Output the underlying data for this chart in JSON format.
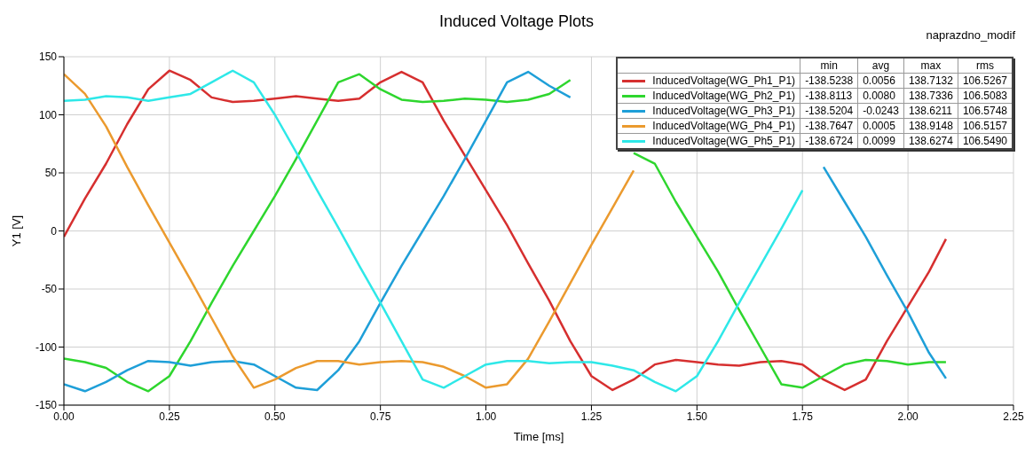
{
  "chart_data": {
    "type": "line",
    "title": "Induced Voltage Plots",
    "subtitle": "naprazdno_modif",
    "xlabel": "Time [ms]",
    "ylabel": "Y1 [V]",
    "x": [
      0,
      0.05,
      0.1,
      0.15,
      0.2,
      0.25,
      0.3,
      0.35,
      0.4,
      0.45,
      0.5,
      0.55,
      0.6,
      0.65,
      0.7,
      0.75,
      0.8,
      0.85,
      0.9,
      0.95,
      1.0,
      1.05,
      1.1,
      1.15,
      1.2,
      1.25,
      1.3,
      1.35,
      1.4,
      1.45,
      1.5,
      1.55,
      1.6,
      1.65,
      1.7,
      1.75,
      1.8,
      1.85,
      1.9,
      1.95,
      2.0,
      2.05,
      2.09
    ],
    "series": [
      {
        "name": "InducedVoltage(WG_Ph1_P1)",
        "color": "#d62f2f",
        "values": [
          -5,
          28,
          58,
          92,
          122,
          138,
          130,
          115,
          111,
          112,
          114,
          116,
          114,
          112,
          114,
          128,
          137,
          128,
          95,
          65,
          35,
          5,
          -28,
          -60,
          -95,
          -125,
          -137,
          -128,
          -115,
          -111,
          -113,
          -115,
          -116,
          -113,
          -112,
          -115,
          -128,
          -137,
          -128,
          -95,
          -65,
          -35,
          -7
        ]
      },
      {
        "name": "InducedVoltage(WG_Ph2_P1)",
        "color": "#2ed62e",
        "values": [
          -110,
          -113,
          -118,
          -130,
          -138,
          -125,
          -95,
          -62,
          -30,
          0,
          30,
          62,
          95,
          128,
          135,
          122,
          113,
          111,
          112,
          114,
          113,
          111,
          113,
          118,
          130,
          null,
          null,
          67,
          58,
          25,
          -5,
          -35,
          -68,
          -100,
          -132,
          -135,
          -125,
          -115,
          -111,
          -112,
          -115,
          -113,
          -113
        ]
      },
      {
        "name": "InducedVoltage(WG_Ph3_P1)",
        "color": "#1e9fd8",
        "values": [
          -132,
          -138,
          -130,
          -120,
          -112,
          -113,
          -116,
          -113,
          -112,
          -115,
          -125,
          -135,
          -137,
          -120,
          -95,
          -62,
          -30,
          0,
          30,
          62,
          95,
          128,
          137,
          125,
          115,
          null,
          null,
          null,
          null,
          null,
          null,
          null,
          null,
          null,
          null,
          null,
          55,
          25,
          -5,
          -38,
          -70,
          -105,
          -127
        ]
      },
      {
        "name": "InducedVoltage(WG_Ph4_P1)",
        "color": "#eb9a2e",
        "values": [
          135,
          118,
          90,
          55,
          22,
          -10,
          -42,
          -75,
          -108,
          -135,
          -128,
          -118,
          -112,
          -112,
          -115,
          -113,
          -112,
          -113,
          -117,
          -125,
          -135,
          -132,
          -110,
          -78,
          -45,
          -12,
          20,
          52,
          null,
          null,
          null,
          null,
          null,
          null,
          null,
          null,
          null,
          null,
          null,
          null,
          null,
          null,
          null
        ]
      },
      {
        "name": "InducedVoltage(WG_Ph5_P1)",
        "color": "#2ee8e8",
        "values": [
          112,
          113,
          116,
          115,
          112,
          115,
          118,
          128,
          138,
          128,
          100,
          68,
          35,
          3,
          -30,
          -62,
          -95,
          -128,
          -135,
          -125,
          -115,
          -112,
          -112,
          -114,
          -113,
          -113,
          -116,
          -120,
          -130,
          -138,
          -125,
          -95,
          -62,
          -30,
          2,
          35,
          null,
          null,
          null,
          null,
          null,
          null,
          null
        ]
      }
    ],
    "xlim": [
      0,
      2.25
    ],
    "xticks": [
      {
        "value": 0,
        "label": "0.00"
      },
      {
        "value": 0.25,
        "label": "0.25"
      },
      {
        "value": 0.5,
        "label": "0.50"
      },
      {
        "value": 0.75,
        "label": "0.75"
      },
      {
        "value": 1,
        "label": "1.00"
      },
      {
        "value": 1.25,
        "label": "1.25"
      },
      {
        "value": 1.5,
        "label": "1.50"
      },
      {
        "value": 1.75,
        "label": "1.75"
      },
      {
        "value": 2,
        "label": "2.00"
      },
      {
        "value": 2.25,
        "label": "2.25"
      }
    ],
    "ylim": [
      -150,
      150
    ],
    "yticks": [
      -150,
      -100,
      -50,
      0,
      50,
      100,
      150
    ],
    "grid": true,
    "legend": "top right",
    "marker": "none",
    "line_style": "solid",
    "annotations": [
      "min",
      "avg",
      "max",
      "rms",
      "-138.5238",
      "0.0056",
      "138.7132",
      "106.5267",
      "-138.8113",
      "0.0080",
      "138.7336",
      "106.5083",
      "-138.5204",
      "-0.0243",
      "138.6211",
      "106.5748",
      "-138.7647",
      "0.0005",
      "138.9148",
      "106.5157",
      "-138.6724",
      "0.0099",
      "138.6274",
      "106.5490"
    ]
  }
}
